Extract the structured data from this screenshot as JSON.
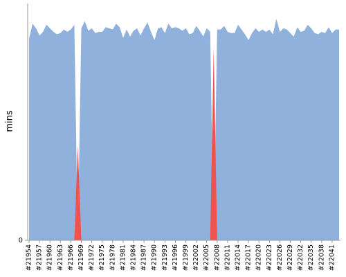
{
  "chart_data": {
    "type": "area",
    "y_label": "mins",
    "categories": [
      "#21954",
      null,
      null,
      "#21957",
      null,
      null,
      "#21960",
      null,
      null,
      "#21963",
      null,
      null,
      "#21966",
      null,
      null,
      "#21969",
      null,
      null,
      "#21972",
      null,
      null,
      "#21975",
      null,
      null,
      "#21978",
      null,
      null,
      "#21981",
      null,
      null,
      "#21984",
      null,
      null,
      "#21987",
      null,
      null,
      "#21990",
      null,
      null,
      "#21993",
      null,
      null,
      "#21996",
      null,
      null,
      "#21999",
      null,
      null,
      "#22002",
      null,
      null,
      "#22005",
      null,
      null,
      "#22008",
      null,
      null,
      "#22011",
      null,
      null,
      "#22014",
      null,
      null,
      "#22017",
      null,
      null,
      "#22020",
      null,
      null,
      "#22023",
      null,
      null,
      "#22026",
      null,
      null,
      "#22029",
      null,
      null,
      "#22032",
      null,
      null,
      "#22035",
      null,
      null,
      "#22038",
      null,
      null,
      "#22041",
      null,
      null
    ],
    "series": [
      {
        "color": "#8fb1db",
        "values": [
          17.0,
          18.3,
          17.9,
          17.3,
          17.6,
          18.2,
          17.9,
          17.6,
          17.4,
          17.5,
          17.8,
          17.6,
          17.8,
          18.2,
          null,
          17.9,
          18.5,
          17.7,
          17.9,
          17.5,
          17.6,
          17.6,
          18.0,
          17.9,
          17.8,
          18.3,
          18.0,
          17.1,
          17.8,
          17.2,
          17.7,
          17.9,
          17.3,
          17.9,
          18.4,
          17.6,
          16.9,
          17.9,
          18.0,
          17.5,
          18.3,
          17.9,
          18.0,
          17.9,
          17.7,
          17.9,
          17.4,
          17.5,
          18.1,
          17.7,
          17.2,
          17.9,
          17.6,
          null,
          17.8,
          17.8,
          18.1,
          17.6,
          17.5,
          17.5,
          18.2,
          17.8,
          17.4,
          16.9,
          17.5,
          17.9,
          17.6,
          17.8,
          17.6,
          17.8,
          17.4,
          18.7,
          17.6,
          17.9,
          17.8,
          17.5,
          17.2,
          18.0,
          17.6,
          17.7,
          18.2,
          17.9,
          17.5,
          17.4,
          17.6,
          17.5,
          18.0,
          17.5,
          17.8,
          17.8
        ]
      },
      {
        "color": "#ef5350",
        "values": [
          null,
          null,
          null,
          null,
          null,
          null,
          null,
          null,
          null,
          null,
          null,
          null,
          null,
          null,
          8.0,
          null,
          null,
          null,
          null,
          null,
          null,
          null,
          null,
          null,
          null,
          null,
          null,
          null,
          null,
          null,
          null,
          null,
          null,
          null,
          null,
          null,
          null,
          null,
          null,
          null,
          null,
          null,
          null,
          null,
          null,
          null,
          null,
          null,
          null,
          null,
          null,
          null,
          null,
          16.2,
          null,
          null,
          null,
          null,
          null,
          null,
          null,
          null,
          null,
          null,
          null,
          null,
          null,
          null,
          null,
          null,
          null,
          null,
          null,
          null,
          null,
          null,
          null,
          null,
          null,
          null,
          null,
          null,
          null,
          null,
          null,
          null,
          null,
          null,
          null,
          null
        ]
      }
    ],
    "ylim": [
      0,
      20
    ],
    "yticks": [
      0
    ]
  }
}
